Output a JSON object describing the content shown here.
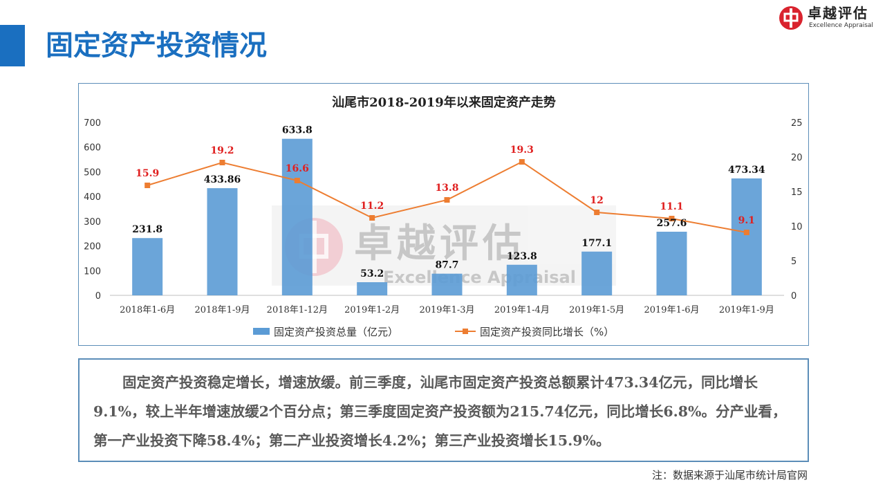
{
  "header": {
    "title": "固定资产投资情况",
    "accent_color": "#1a6fc0"
  },
  "logo": {
    "name_cn": "卓越评估",
    "name_en": "Excellence Appraisal",
    "mark_color": "#d9232e"
  },
  "watermark": {
    "name_cn": "卓越评估",
    "name_en": "Excellence Appraisal"
  },
  "chart_data": {
    "type": "bar+line",
    "title": "汕尾市2018-2019年以来固定资产走势",
    "categories": [
      "2018年1-6月",
      "2018年1-9月",
      "2018年1-12月",
      "2019年1-2月",
      "2019年1-3月",
      "2019年1-4月",
      "2019年1-5月",
      "2019年1-6月",
      "2019年1-9月"
    ],
    "series": [
      {
        "name": "固定资产投资总量（亿元）",
        "type": "bar",
        "axis": "left",
        "color": "#5b9bd5",
        "values": [
          231.8,
          433.86,
          633.8,
          53.2,
          87.7,
          123.8,
          177.1,
          257.6,
          473.34
        ],
        "labels": [
          "231.8",
          "433.86",
          "633.8",
          "53.2",
          "87.7",
          "123.8",
          "177.1",
          "257.6",
          "473.34"
        ]
      },
      {
        "name": "固定资产投资同比增长（%）",
        "type": "line",
        "axis": "right",
        "color": "#ed7d31",
        "label_color": "#e02020",
        "values": [
          15.9,
          19.2,
          16.6,
          11.2,
          13.8,
          19.3,
          12,
          11.1,
          9.1
        ],
        "labels": [
          "15.9",
          "19.2",
          "16.6",
          "11.2",
          "13.8",
          "19.3",
          "12",
          "11.1",
          "9.1"
        ]
      }
    ],
    "y_left": {
      "min": 0,
      "max": 700,
      "ticks": [
        "0",
        "100",
        "200",
        "300",
        "400",
        "500",
        "600",
        "700"
      ]
    },
    "y_right": {
      "min": 0,
      "max": 25,
      "ticks": [
        "0",
        "5",
        "10",
        "15",
        "20",
        "25"
      ]
    },
    "legend_position": "bottom",
    "grid": false
  },
  "summary": {
    "text": "固定资产投资稳定增长，增速放缓。前三季度，汕尾市固定资产投资总额累计473.34亿元，同比增长9.1%，较上半年增速放缓2个百分点；第三季度固定资产投资额为215.74亿元，同比增长6.8%。分产业看，第一产业投资下降58.4%；第二产业投资增长4.2%；第三产业投资增长15.9%。"
  },
  "source": {
    "text": "注：数据来源于汕尾市统计局官网"
  }
}
